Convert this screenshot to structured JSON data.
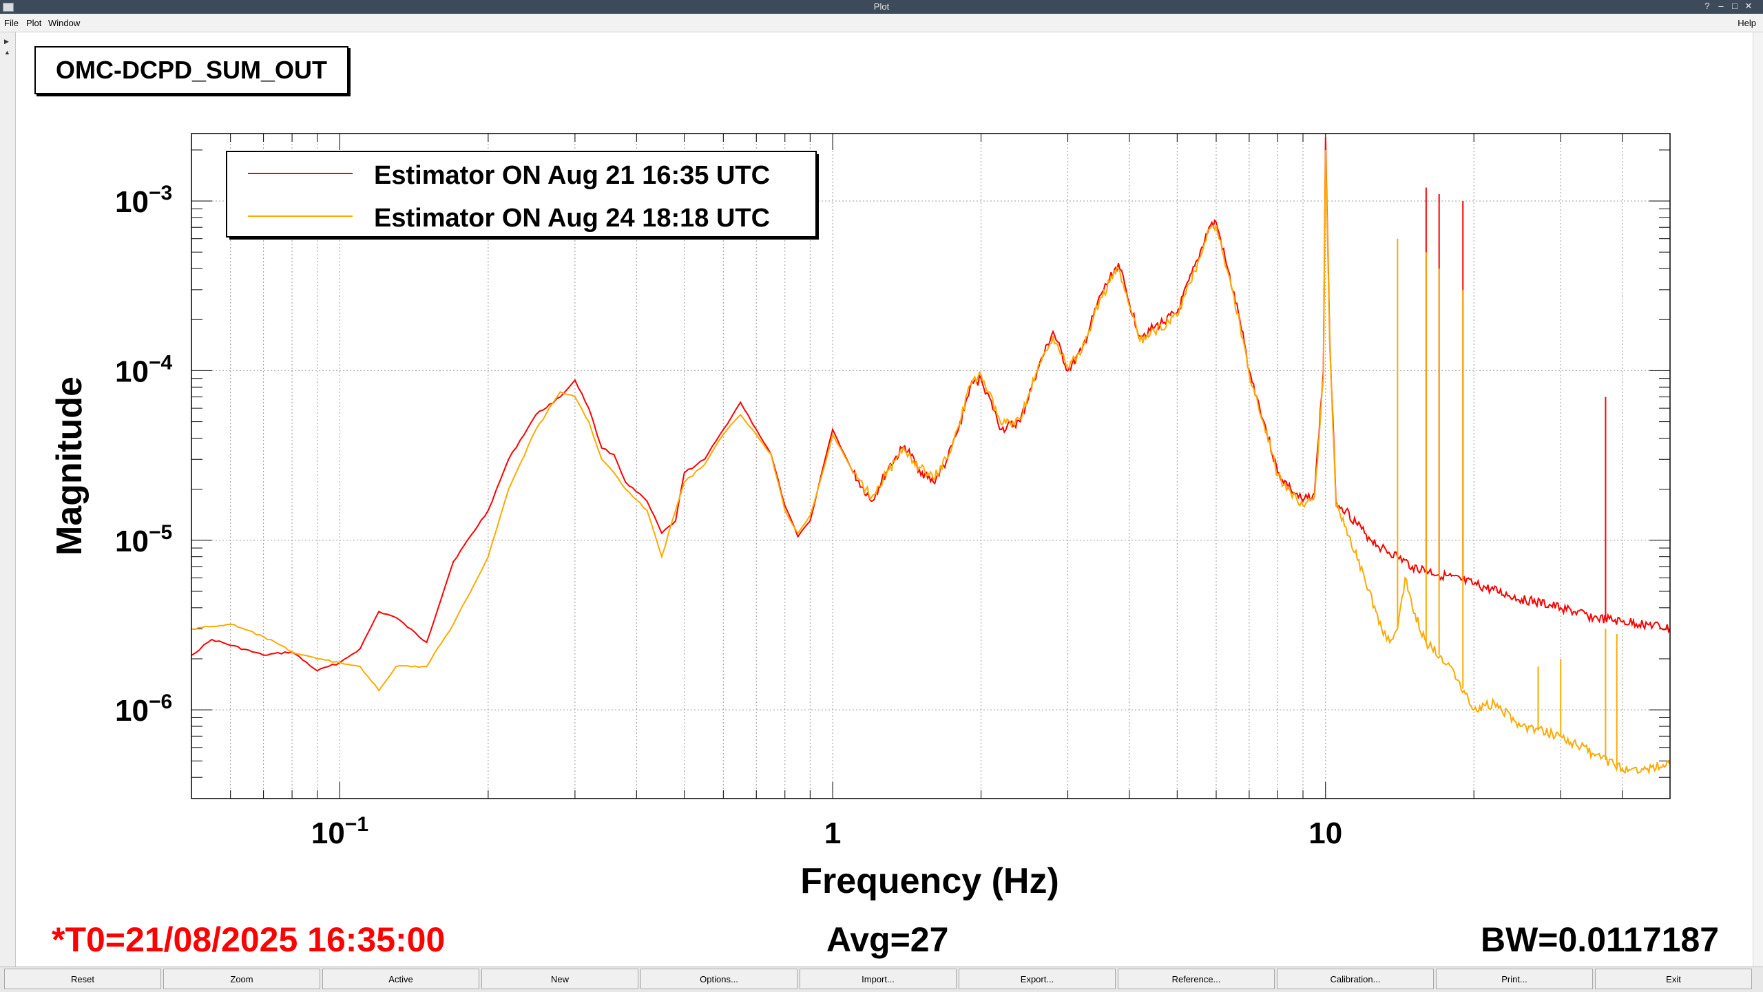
{
  "window": {
    "title": "Plot",
    "help": "Help"
  },
  "menu": [
    "File",
    "Plot",
    "Window"
  ],
  "channel_name": "OMC-DCPD_SUM_OUT",
  "status": {
    "t0": "*T0=21/08/2025 16:35:00",
    "avg": "Avg=27",
    "bw": "BW=0.0117187"
  },
  "buttons": [
    "Reset",
    "Zoom",
    "Active",
    "New",
    "Options...",
    "Import...",
    "Export...",
    "Reference...",
    "Calibration...",
    "Print...",
    "Exit"
  ],
  "colors": {
    "series1": "#ff0000",
    "series2": "#ffaa00",
    "t0": "#ff0000"
  },
  "chart_data": {
    "type": "line",
    "title": "",
    "xlabel": "Frequency (Hz)",
    "ylabel": "Magnitude",
    "x_scale": "log",
    "y_scale": "log",
    "xlim": [
      0.05,
      50
    ],
    "ylim": [
      3e-07,
      0.0025
    ],
    "grid": true,
    "legend_position": "top-left",
    "x_ticks": [
      {
        "value": 0.1,
        "base": "10",
        "exp": "−1"
      },
      {
        "value": 1,
        "base": "1",
        "exp": ""
      },
      {
        "value": 10,
        "base": "10",
        "exp": ""
      }
    ],
    "y_ticks": [
      {
        "value": 0.001,
        "base": "10",
        "exp": "−3"
      },
      {
        "value": 0.0001,
        "base": "10",
        "exp": "−4"
      },
      {
        "value": 1e-05,
        "base": "10",
        "exp": "−5"
      },
      {
        "value": 1e-06,
        "base": "10",
        "exp": "−6"
      }
    ],
    "series": [
      {
        "name": "Estimator ON Aug 21 16:35 UTC",
        "color": "#ff0000",
        "points": [
          [
            0.05,
            2.1e-06
          ],
          [
            0.055,
            2.6e-06
          ],
          [
            0.07,
            2.1e-06
          ],
          [
            0.08,
            2.2e-06
          ],
          [
            0.09,
            1.7e-06
          ],
          [
            0.1,
            1.9e-06
          ],
          [
            0.11,
            2.3e-06
          ],
          [
            0.12,
            3.8e-06
          ],
          [
            0.13,
            3.5e-06
          ],
          [
            0.15,
            2.5e-06
          ],
          [
            0.17,
            7.5e-06
          ],
          [
            0.2,
            1.5e-05
          ],
          [
            0.22,
            3e-05
          ],
          [
            0.25,
            5.5e-05
          ],
          [
            0.28,
            7e-05
          ],
          [
            0.3,
            8.8e-05
          ],
          [
            0.32,
            6e-05
          ],
          [
            0.34,
            3.5e-05
          ],
          [
            0.36,
            3.2e-05
          ],
          [
            0.38,
            2.2e-05
          ],
          [
            0.42,
            1.7e-05
          ],
          [
            0.45,
            1.1e-05
          ],
          [
            0.48,
            1.3e-05
          ],
          [
            0.5,
            2.5e-05
          ],
          [
            0.55,
            3e-05
          ],
          [
            0.6,
            4.5e-05
          ],
          [
            0.65,
            6.5e-05
          ],
          [
            0.7,
            4.5e-05
          ],
          [
            0.75,
            3.2e-05
          ],
          [
            0.8,
            1.6e-05
          ],
          [
            0.85,
            1.05e-05
          ],
          [
            0.9,
            1.3e-05
          ],
          [
            0.95,
            2.5e-05
          ],
          [
            1.0,
            4.5e-05
          ],
          [
            1.1,
            2.5e-05
          ],
          [
            1.2,
            1.7e-05
          ],
          [
            1.3,
            2.7e-05
          ],
          [
            1.4,
            3.6e-05
          ],
          [
            1.5,
            2.6e-05
          ],
          [
            1.6,
            2.2e-05
          ],
          [
            1.7,
            2.9e-05
          ],
          [
            1.8,
            4.5e-05
          ],
          [
            1.9,
            8e-05
          ],
          [
            2.0,
            9e-05
          ],
          [
            2.2,
            4.5e-05
          ],
          [
            2.4,
            5e-05
          ],
          [
            2.6,
            0.0001
          ],
          [
            2.8,
            0.00017
          ],
          [
            3.0,
            0.0001
          ],
          [
            3.2,
            0.00013
          ],
          [
            3.5,
            0.00028
          ],
          [
            3.8,
            0.00043
          ],
          [
            4.0,
            0.00025
          ],
          [
            4.2,
            0.00016
          ],
          [
            4.5,
            0.00018
          ],
          [
            5.0,
            0.00022
          ],
          [
            5.5,
            0.00045
          ],
          [
            5.8,
            0.0007
          ],
          [
            6.0,
            0.00075
          ],
          [
            6.3,
            0.00042
          ],
          [
            6.7,
            0.0002
          ],
          [
            7.0,
            0.0001
          ],
          [
            7.5,
            5e-05
          ],
          [
            8.0,
            2.5e-05
          ],
          [
            8.5,
            2e-05
          ],
          [
            9.0,
            1.7e-05
          ],
          [
            9.5,
            1.9e-05
          ],
          [
            9.9,
            0.0001
          ],
          [
            10.0,
            0.0024
          ],
          [
            10.2,
            0.00015
          ],
          [
            10.5,
            1.7e-05
          ],
          [
            11,
            1.5e-05
          ],
          [
            12,
            1.1e-05
          ],
          [
            13,
            9e-06
          ],
          [
            14,
            8e-06
          ],
          [
            15,
            7e-06
          ],
          [
            20,
            5.5e-06
          ],
          [
            25,
            4.5e-06
          ],
          [
            30,
            4e-06
          ],
          [
            35,
            3.5e-06
          ],
          [
            40,
            3.3e-06
          ],
          [
            45,
            3.2e-06
          ],
          [
            50,
            3e-06
          ]
        ],
        "spikes": [
          [
            16,
            0.0012
          ],
          [
            17,
            0.0011
          ],
          [
            19,
            0.001
          ],
          [
            37,
            7e-05
          ]
        ]
      },
      {
        "name": "Estimator ON Aug 24 18:18 UTC",
        "color": "#ffaa00",
        "points": [
          [
            0.05,
            3e-06
          ],
          [
            0.06,
            3.2e-06
          ],
          [
            0.07,
            2.7e-06
          ],
          [
            0.08,
            2.2e-06
          ],
          [
            0.09,
            2e-06
          ],
          [
            0.1,
            1.9e-06
          ],
          [
            0.11,
            1.8e-06
          ],
          [
            0.12,
            1.3e-06
          ],
          [
            0.13,
            1.8e-06
          ],
          [
            0.15,
            1.8e-06
          ],
          [
            0.17,
            3.2e-06
          ],
          [
            0.2,
            8e-06
          ],
          [
            0.22,
            2e-05
          ],
          [
            0.25,
            4.5e-05
          ],
          [
            0.28,
            7.5e-05
          ],
          [
            0.3,
            7e-05
          ],
          [
            0.32,
            5e-05
          ],
          [
            0.34,
            3e-05
          ],
          [
            0.36,
            2.5e-05
          ],
          [
            0.38,
            2e-05
          ],
          [
            0.42,
            1.5e-05
          ],
          [
            0.45,
            8e-06
          ],
          [
            0.48,
            1.5e-05
          ],
          [
            0.5,
            2.2e-05
          ],
          [
            0.55,
            2.8e-05
          ],
          [
            0.6,
            4.2e-05
          ],
          [
            0.65,
            5.5e-05
          ],
          [
            0.7,
            4.2e-05
          ],
          [
            0.75,
            3.2e-05
          ],
          [
            0.8,
            1.5e-05
          ],
          [
            0.85,
            1.1e-05
          ],
          [
            0.9,
            1.4e-05
          ],
          [
            0.95,
            2.4e-05
          ],
          [
            1.0,
            4.2e-05
          ],
          [
            1.1,
            2.5e-05
          ],
          [
            1.2,
            1.8e-05
          ],
          [
            1.3,
            2.6e-05
          ],
          [
            1.4,
            3.4e-05
          ],
          [
            1.5,
            2.7e-05
          ],
          [
            1.6,
            2.3e-05
          ],
          [
            1.7,
            3e-05
          ],
          [
            1.8,
            4.7e-05
          ],
          [
            1.9,
            8.2e-05
          ],
          [
            2.0,
            9.5e-05
          ],
          [
            2.2,
            4.8e-05
          ],
          [
            2.4,
            5.2e-05
          ],
          [
            2.6,
            0.0001
          ],
          [
            2.8,
            0.00016
          ],
          [
            3.0,
            0.000105
          ],
          [
            3.2,
            0.00013
          ],
          [
            3.5,
            0.00027
          ],
          [
            3.8,
            0.0004
          ],
          [
            4.0,
            0.00024
          ],
          [
            4.2,
            0.00015
          ],
          [
            4.5,
            0.00017
          ],
          [
            5.0,
            0.00021
          ],
          [
            5.5,
            0.00043
          ],
          [
            5.8,
            0.00068
          ],
          [
            6.0,
            0.00072
          ],
          [
            6.3,
            0.0004
          ],
          [
            6.7,
            0.00019
          ],
          [
            7.0,
            9.5e-05
          ],
          [
            7.5,
            4.8e-05
          ],
          [
            8.0,
            2.4e-05
          ],
          [
            8.5,
            1.9e-05
          ],
          [
            9.0,
            1.6e-05
          ],
          [
            9.5,
            1.8e-05
          ],
          [
            9.9,
            9e-05
          ],
          [
            10.0,
            0.002
          ],
          [
            10.2,
            0.00014
          ],
          [
            10.5,
            1.6e-05
          ],
          [
            11,
            1.2e-05
          ],
          [
            12,
            6e-06
          ],
          [
            13,
            3e-06
          ],
          [
            13.5,
            2.5e-06
          ],
          [
            14,
            3e-06
          ],
          [
            14.5,
            6e-06
          ],
          [
            15,
            4e-06
          ],
          [
            16,
            2.5e-06
          ],
          [
            18,
            1.8e-06
          ],
          [
            20,
            1e-06
          ],
          [
            22,
            1.1e-06
          ],
          [
            25,
            8e-07
          ],
          [
            30,
            7e-07
          ],
          [
            35,
            5.5e-07
          ],
          [
            40,
            4.5e-07
          ],
          [
            45,
            4.5e-07
          ],
          [
            50,
            4.8e-07
          ]
        ],
        "spikes": [
          [
            14,
            0.0006
          ],
          [
            16,
            0.0005
          ],
          [
            17,
            0.0004
          ],
          [
            19,
            0.0003
          ],
          [
            27,
            1.8e-06
          ],
          [
            30,
            2e-06
          ],
          [
            37,
            3e-06
          ],
          [
            39,
            2.8e-06
          ]
        ]
      }
    ]
  }
}
